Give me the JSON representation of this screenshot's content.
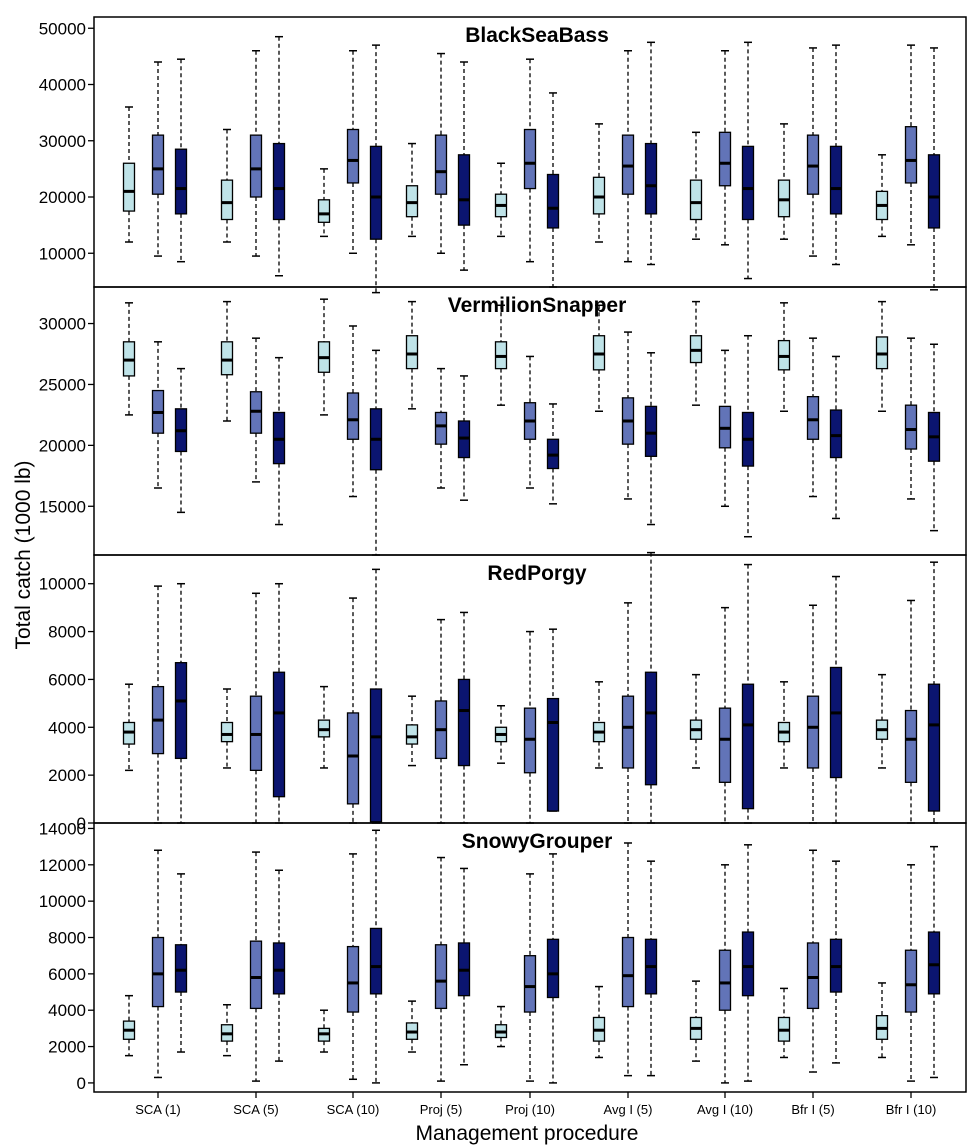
{
  "chart_data": {
    "type": "boxplot",
    "xlabel": "Management procedure",
    "ylabel": "Total catch (1000 lb)",
    "categories": [
      "SCA (1)",
      "SCA (5)",
      "SCA (10)",
      "Proj (5)",
      "Proj (10)",
      "Avg I (5)",
      "Avg I (10)",
      "Bfr I (5)",
      "Bfr I (10)"
    ],
    "box_colors": [
      "#bfe3e8",
      "#6274b8",
      "#0b1570"
    ],
    "median_color": "#000000",
    "panels": [
      {
        "title": "BlackSeaBass",
        "ylim": [
          4000,
          52000
        ],
        "yticks": [
          10000,
          20000,
          30000,
          40000,
          50000
        ],
        "groups": [
          [
            [
              12000,
              17500,
              21000,
              26000,
              36000
            ],
            [
              9500,
              20500,
              25000,
              31000,
              44000
            ],
            [
              8500,
              17000,
              21500,
              28500,
              44500
            ]
          ],
          [
            [
              12000,
              16000,
              19000,
              23000,
              32000
            ],
            [
              9500,
              20000,
              25000,
              31000,
              46000
            ],
            [
              6000,
              16000,
              21500,
              29500,
              48500
            ]
          ],
          [
            [
              13000,
              15500,
              17000,
              19500,
              25000
            ],
            [
              10000,
              22500,
              26500,
              32000,
              46000
            ],
            [
              3000,
              12500,
              20000,
              29000,
              47000
            ]
          ],
          [
            [
              13000,
              16500,
              19000,
              22000,
              29500
            ],
            [
              10000,
              20500,
              24500,
              31000,
              45500
            ],
            [
              7000,
              15000,
              19500,
              27500,
              44000
            ]
          ],
          [
            [
              13000,
              16500,
              18500,
              20500,
              26000
            ],
            [
              8500,
              21500,
              26000,
              32000,
              44500
            ],
            [
              4000,
              14500,
              18000,
              24000,
              38500
            ]
          ],
          [
            [
              12000,
              17000,
              20000,
              23500,
              33000
            ],
            [
              8500,
              20500,
              25500,
              31000,
              46000
            ],
            [
              8000,
              17000,
              22000,
              29500,
              47500
            ]
          ],
          [
            [
              12500,
              16000,
              19000,
              23000,
              31500
            ],
            [
              11500,
              22000,
              26000,
              31500,
              46000
            ],
            [
              5500,
              16000,
              21500,
              29000,
              47500
            ]
          ],
          [
            [
              12500,
              16500,
              19500,
              23000,
              33000
            ],
            [
              9500,
              20500,
              25500,
              31000,
              46500
            ],
            [
              8000,
              17000,
              21500,
              29000,
              47000
            ]
          ],
          [
            [
              13000,
              16000,
              18500,
              21000,
              27500
            ],
            [
              11500,
              22500,
              26500,
              32500,
              47000
            ],
            [
              3500,
              14500,
              20000,
              27500,
              46500
            ]
          ]
        ]
      },
      {
        "title": "VermilionSnapper",
        "ylim": [
          11000,
          33000
        ],
        "yticks": [
          15000,
          20000,
          25000,
          30000
        ],
        "groups": [
          [
            [
              22500,
              25700,
              27000,
              28500,
              31700
            ],
            [
              16500,
              21000,
              22700,
              24500,
              28500
            ],
            [
              14500,
              19500,
              21200,
              23000,
              26300
            ]
          ],
          [
            [
              22000,
              25800,
              27000,
              28500,
              31800
            ],
            [
              17000,
              21000,
              22800,
              24400,
              28800
            ],
            [
              13500,
              18500,
              20500,
              22700,
              27200
            ]
          ],
          [
            [
              22500,
              26000,
              27200,
              28500,
              32000
            ],
            [
              15800,
              20500,
              22100,
              24300,
              29800
            ],
            [
              11000,
              18000,
              20500,
              23000,
              27800
            ]
          ],
          [
            [
              23000,
              26300,
              27500,
              29000,
              31800
            ],
            [
              16500,
              20100,
              21600,
              22700,
              26300
            ],
            [
              15500,
              19000,
              20600,
              22000,
              25700
            ]
          ],
          [
            [
              23300,
              26300,
              27300,
              28500,
              31500
            ],
            [
              16500,
              20500,
              22000,
              23500,
              27300
            ],
            [
              15200,
              18100,
              19200,
              20500,
              23400
            ]
          ],
          [
            [
              22800,
              26200,
              27500,
              29000,
              31500
            ],
            [
              15600,
              20100,
              22000,
              23900,
              29300
            ],
            [
              13500,
              19100,
              21000,
              23200,
              27600
            ]
          ],
          [
            [
              23300,
              26800,
              27800,
              29000,
              31800
            ],
            [
              15000,
              19800,
              21400,
              23200,
              27800
            ],
            [
              12500,
              18300,
              20500,
              22700,
              29000
            ]
          ],
          [
            [
              22800,
              26200,
              27300,
              28600,
              31700
            ],
            [
              15800,
              20500,
              22100,
              24000,
              28800
            ],
            [
              14000,
              19000,
              20800,
              22900,
              27300
            ]
          ],
          [
            [
              22800,
              26300,
              27500,
              28900,
              31800
            ],
            [
              15600,
              19700,
              21300,
              23300,
              28800
            ],
            [
              13000,
              18700,
              20700,
              22700,
              28300
            ]
          ]
        ]
      },
      {
        "title": "RedPorgy",
        "ylim": [
          0,
          11200
        ],
        "yticks": [
          0,
          2000,
          4000,
          6000,
          8000,
          10000
        ],
        "groups": [
          [
            [
              2200,
              3300,
              3800,
              4200,
              5800
            ],
            [
              0,
              2900,
              4300,
              5700,
              9900
            ],
            [
              0,
              2700,
              5100,
              6700,
              10000
            ]
          ],
          [
            [
              2300,
              3400,
              3700,
              4200,
              5600
            ],
            [
              0,
              2200,
              3700,
              5300,
              9600
            ],
            [
              0,
              1100,
              4600,
              6300,
              10000
            ]
          ],
          [
            [
              2300,
              3600,
              3900,
              4300,
              5700
            ],
            [
              0,
              800,
              2800,
              4600,
              9400
            ],
            [
              0,
              50,
              3600,
              5600,
              10600
            ]
          ],
          [
            [
              2400,
              3300,
              3600,
              4100,
              5300
            ],
            [
              0,
              2700,
              3900,
              5100,
              8500
            ],
            [
              0,
              2400,
              4700,
              6000,
              8800
            ]
          ],
          [
            [
              2500,
              3400,
              3700,
              4000,
              4900
            ],
            [
              0,
              2100,
              3500,
              4800,
              8000
            ],
            [
              500,
              500,
              4200,
              5200,
              8100
            ]
          ],
          [
            [
              2300,
              3400,
              3800,
              4200,
              5900
            ],
            [
              0,
              2300,
              4000,
              5300,
              9200
            ],
            [
              0,
              1600,
              4600,
              6300,
              11300
            ]
          ],
          [
            [
              2300,
              3500,
              3900,
              4300,
              6200
            ],
            [
              0,
              1700,
              3500,
              4800,
              9000
            ],
            [
              0,
              600,
              4100,
              5800,
              10800
            ]
          ],
          [
            [
              2300,
              3400,
              3800,
              4200,
              5900
            ],
            [
              0,
              2300,
              4000,
              5300,
              9100
            ],
            [
              0,
              1900,
              4600,
              6500,
              10300
            ]
          ],
          [
            [
              2300,
              3500,
              3900,
              4300,
              6200
            ],
            [
              0,
              1700,
              3500,
              4700,
              9300
            ],
            [
              0,
              500,
              4100,
              5800,
              10900
            ]
          ]
        ]
      },
      {
        "title": "SnowyGrouper",
        "ylim": [
          -500,
          14300
        ],
        "yticks": [
          0,
          2000,
          4000,
          6000,
          8000,
          10000,
          12000,
          14000
        ],
        "groups": [
          [
            [
              1500,
              2400,
              2900,
              3400,
              4800
            ],
            [
              300,
              4200,
              6000,
              8000,
              12800
            ],
            [
              1700,
              5000,
              6200,
              7600,
              11500
            ]
          ],
          [
            [
              1500,
              2300,
              2700,
              3200,
              4300
            ],
            [
              100,
              4100,
              5800,
              7800,
              12700
            ],
            [
              1200,
              4900,
              6200,
              7700,
              11700
            ]
          ],
          [
            [
              1700,
              2300,
              2700,
              3000,
              4000
            ],
            [
              200,
              3900,
              5500,
              7500,
              12600
            ],
            [
              0,
              4900,
              6400,
              8500,
              13900
            ]
          ],
          [
            [
              1700,
              2400,
              2800,
              3300,
              4500
            ],
            [
              100,
              4100,
              5600,
              7600,
              12400
            ],
            [
              1000,
              4800,
              6200,
              7700,
              11800
            ]
          ],
          [
            [
              2000,
              2500,
              2800,
              3200,
              4200
            ],
            [
              100,
              3900,
              5300,
              7000,
              11500
            ],
            [
              0,
              4700,
              6000,
              7900,
              12600
            ]
          ],
          [
            [
              1400,
              2300,
              2900,
              3600,
              5300
            ],
            [
              400,
              4200,
              5900,
              8000,
              13200
            ],
            [
              400,
              4900,
              6400,
              7900,
              12200
            ]
          ],
          [
            [
              1200,
              2400,
              3000,
              3600,
              5600
            ],
            [
              0,
              4000,
              5500,
              7300,
              12000
            ],
            [
              100,
              4800,
              6400,
              8300,
              13100
            ]
          ],
          [
            [
              1400,
              2300,
              2900,
              3600,
              5200
            ],
            [
              600,
              4100,
              5800,
              7700,
              12800
            ],
            [
              1100,
              5000,
              6400,
              7900,
              12200
            ]
          ],
          [
            [
              1400,
              2400,
              3000,
              3700,
              5500
            ],
            [
              100,
              3900,
              5400,
              7300,
              12000
            ],
            [
              300,
              4900,
              6500,
              8300,
              13000
            ]
          ]
        ]
      }
    ]
  }
}
